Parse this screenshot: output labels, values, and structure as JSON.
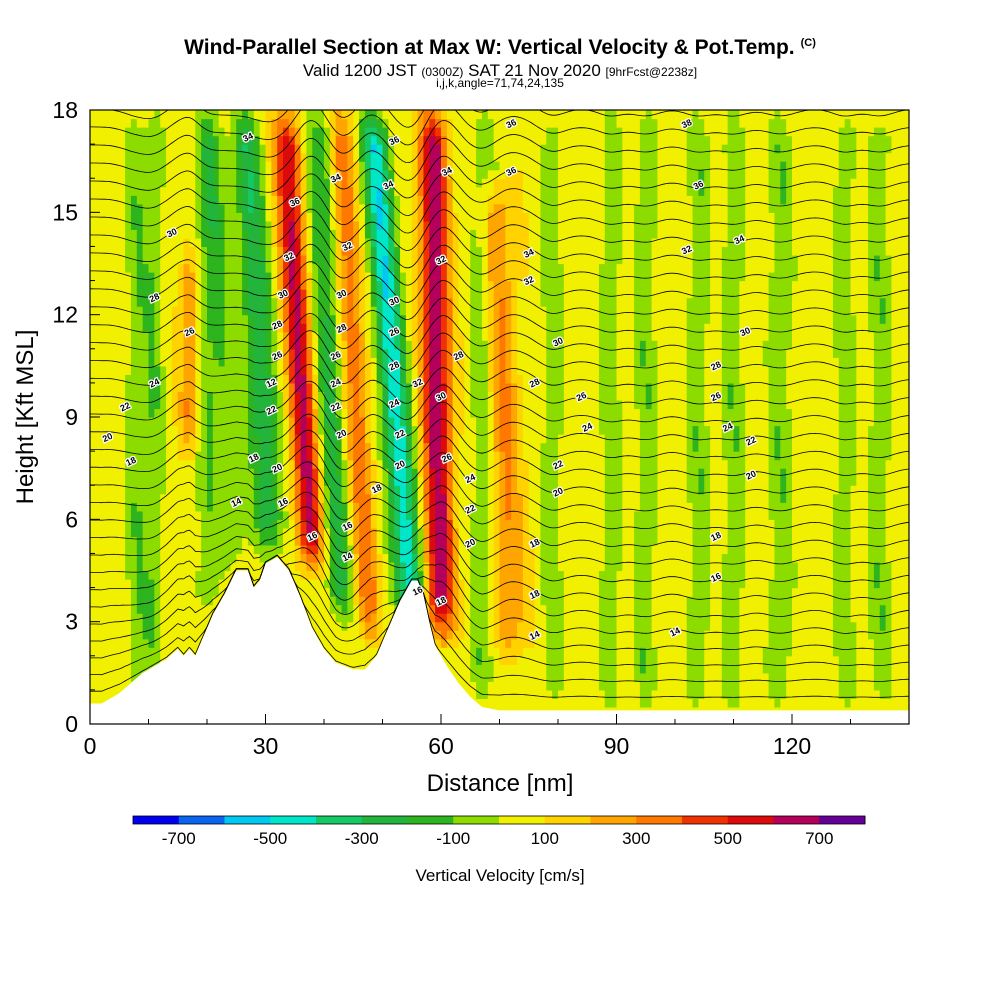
{
  "title": {
    "main": "Wind-Parallel Section at Max W: Vertical Velocity & Pot.Temp.",
    "copyright": "(C)",
    "valid_prefix": "Valid 1200 JST",
    "valid_utc": "(0300Z)",
    "valid_date": "SAT 21 Nov 2020",
    "forecast": "[9hrFcst@2238z]",
    "params": "i,j,k,angle=71,74,24,135"
  },
  "chart_data": {
    "type": "heatmap",
    "xlabel": "Distance [nm]",
    "ylabel": "Height [Kft MSL]",
    "xlim": [
      0,
      140
    ],
    "ylim": [
      0,
      18
    ],
    "xticks": [
      0,
      30,
      60,
      90,
      120
    ],
    "yticks": [
      0,
      3,
      6,
      9,
      12,
      15,
      18
    ],
    "colorbar": {
      "label": "Vertical Velocity [cm/s]",
      "tick_labels": [
        "-700",
        "-500",
        "-300",
        "-100",
        "100",
        "300",
        "500",
        "700"
      ],
      "levels": [
        -800,
        -700,
        -600,
        -500,
        -400,
        -300,
        -200,
        -100,
        0,
        100,
        200,
        300,
        400,
        500,
        600,
        700,
        800
      ],
      "colors": [
        "#0000f0",
        "#0a64f0",
        "#00c8f0",
        "#00e6c8",
        "#14c864",
        "#23b43c",
        "#2db41e",
        "#8cdc00",
        "#f0f000",
        "#ffd200",
        "#ffa500",
        "#ff7800",
        "#f03200",
        "#dc0a0a",
        "#b4005a",
        "#640096"
      ]
    },
    "terrain": [
      [
        0,
        0.6
      ],
      [
        2,
        0.6
      ],
      [
        5,
        0.9
      ],
      [
        9,
        1.5
      ],
      [
        13,
        1.9
      ],
      [
        15,
        2.2
      ],
      [
        16,
        2.0
      ],
      [
        17,
        2.2
      ],
      [
        18,
        2.0
      ],
      [
        19,
        2.4
      ],
      [
        21,
        3.2
      ],
      [
        23,
        3.8
      ],
      [
        25,
        4.5
      ],
      [
        27,
        4.5
      ],
      [
        28,
        4.0
      ],
      [
        29,
        4.2
      ],
      [
        30,
        4.7
      ],
      [
        32,
        4.9
      ],
      [
        34,
        4.5
      ],
      [
        36,
        3.7
      ],
      [
        38,
        2.8
      ],
      [
        40,
        2.2
      ],
      [
        42,
        1.8
      ],
      [
        45,
        1.6
      ],
      [
        47,
        1.6
      ],
      [
        49,
        2.0
      ],
      [
        51,
        2.8
      ],
      [
        53,
        3.6
      ],
      [
        55,
        4.2
      ],
      [
        56,
        4.2
      ],
      [
        57,
        3.8
      ],
      [
        58,
        3.0
      ],
      [
        59,
        2.3
      ],
      [
        61,
        1.7
      ],
      [
        63,
        1.2
      ],
      [
        65,
        0.8
      ],
      [
        67,
        0.5
      ],
      [
        70,
        0.4
      ],
      [
        140,
        0.4
      ]
    ],
    "velocity_bands": [
      {
        "x": 8,
        "hw": 2.0,
        "v": -150,
        "z0": 0.8,
        "z1": 18,
        "slope": 0.0
      },
      {
        "x": 11,
        "hw": 1.6,
        "v": -150,
        "z0": 1.5,
        "z1": 18,
        "slope": 0.0
      },
      {
        "x": 17,
        "hw": 1.6,
        "v": 250,
        "z0": 8,
        "z1": 14,
        "slope": 0.0
      },
      {
        "x": 20,
        "hw": 2.2,
        "v": -150,
        "z0": 3.0,
        "z1": 18,
        "slope": 0.0
      },
      {
        "x": 25,
        "hw": 2.2,
        "v": -150,
        "z0": 4.5,
        "z1": 18,
        "slope": -0.35
      },
      {
        "x": 31,
        "hw": 2.6,
        "v": -350,
        "z0": 5.0,
        "z1": 18,
        "slope": -0.35
      },
      {
        "x": 38,
        "hw": 2.2,
        "v": 550,
        "z0": 4.5,
        "z1": 18,
        "slope": -0.35
      },
      {
        "x": 43,
        "hw": 2.2,
        "v": -300,
        "z0": 3.0,
        "z1": 18,
        "slope": -0.3
      },
      {
        "x": 48,
        "hw": 2.0,
        "v": 300,
        "z0": 2.5,
        "z1": 18,
        "slope": -0.35
      },
      {
        "x": 55,
        "hw": 2.4,
        "v": -550,
        "z0": 3.0,
        "z1": 18,
        "slope": -0.45
      },
      {
        "x": 60,
        "hw": 2.4,
        "v": 600,
        "z0": 2.5,
        "z1": 18,
        "slope": -0.1
      },
      {
        "x": 67,
        "hw": 2.2,
        "v": -150,
        "z0": 0.8,
        "z1": 18,
        "slope": 0.0
      },
      {
        "x": 72,
        "hw": 2.6,
        "v": 250,
        "z0": 2.0,
        "z1": 16,
        "slope": -0.2
      },
      {
        "x": 79,
        "hw": 1.8,
        "v": -150,
        "z0": 0.5,
        "z1": 18,
        "slope": 0.0
      },
      {
        "x": 89,
        "hw": 1.8,
        "v": -150,
        "z0": 0.5,
        "z1": 18,
        "slope": 0.0
      },
      {
        "x": 95,
        "hw": 2.0,
        "v": -150,
        "z0": 0.5,
        "z1": 18,
        "slope": 0.0
      },
      {
        "x": 104,
        "hw": 2.0,
        "v": -150,
        "z0": 0.5,
        "z1": 18,
        "slope": 0.0
      },
      {
        "x": 110,
        "hw": 2.0,
        "v": -150,
        "z0": 0.5,
        "z1": 18,
        "slope": 0.0
      },
      {
        "x": 118,
        "hw": 2.2,
        "v": -150,
        "z0": 0.5,
        "z1": 18,
        "slope": 0.0
      },
      {
        "x": 129,
        "hw": 1.8,
        "v": -150,
        "z0": 0.5,
        "z1": 18,
        "slope": 0.0
      },
      {
        "x": 135,
        "hw": 2.0,
        "v": -150,
        "z0": 0.5,
        "z1": 18,
        "slope": 0.0
      }
    ],
    "theta_contour_labels": [
      {
        "text": "34",
        "x": 27,
        "z": 17.2
      },
      {
        "text": "30",
        "x": 14,
        "z": 14.4
      },
      {
        "text": "28",
        "x": 11,
        "z": 12.5
      },
      {
        "text": "26",
        "x": 17,
        "z": 11.5
      },
      {
        "text": "24",
        "x": 11,
        "z": 10.0
      },
      {
        "text": "22",
        "x": 6,
        "z": 9.3
      },
      {
        "text": "20",
        "x": 3,
        "z": 8.4
      },
      {
        "text": "18",
        "x": 7,
        "z": 7.7
      },
      {
        "text": "14",
        "x": 25,
        "z": 6.5
      },
      {
        "text": "18",
        "x": 28,
        "z": 7.8
      },
      {
        "text": "16",
        "x": 33,
        "z": 6.5
      },
      {
        "text": "36",
        "x": 52,
        "z": 17.1
      },
      {
        "text": "34",
        "x": 42,
        "z": 16.0
      },
      {
        "text": "34",
        "x": 51,
        "z": 15.8
      },
      {
        "text": "36",
        "x": 35,
        "z": 15.3
      },
      {
        "text": "32",
        "x": 44,
        "z": 14.0
      },
      {
        "text": "32",
        "x": 34,
        "z": 13.7
      },
      {
        "text": "30",
        "x": 33,
        "z": 12.6
      },
      {
        "text": "30",
        "x": 43,
        "z": 12.6
      },
      {
        "text": "30",
        "x": 52,
        "z": 12.4
      },
      {
        "text": "28",
        "x": 32,
        "z": 11.7
      },
      {
        "text": "28",
        "x": 43,
        "z": 11.6
      },
      {
        "text": "26",
        "x": 52,
        "z": 11.5
      },
      {
        "text": "26",
        "x": 32,
        "z": 10.8
      },
      {
        "text": "26",
        "x": 42,
        "z": 10.8
      },
      {
        "text": "28",
        "x": 52,
        "z": 10.5
      },
      {
        "text": "12",
        "x": 31,
        "z": 10.0
      },
      {
        "text": "24",
        "x": 42,
        "z": 10.0
      },
      {
        "text": "32",
        "x": 56,
        "z": 10.0
      },
      {
        "text": "22",
        "x": 31,
        "z": 9.2
      },
      {
        "text": "22",
        "x": 42,
        "z": 9.3
      },
      {
        "text": "24",
        "x": 52,
        "z": 9.4
      },
      {
        "text": "20",
        "x": 43,
        "z": 8.5
      },
      {
        "text": "22",
        "x": 53,
        "z": 8.5
      },
      {
        "text": "20",
        "x": 32,
        "z": 7.5
      },
      {
        "text": "20",
        "x": 53,
        "z": 7.6
      },
      {
        "text": "18",
        "x": 49,
        "z": 6.9
      },
      {
        "text": "16",
        "x": 38,
        "z": 5.5
      },
      {
        "text": "16",
        "x": 44,
        "z": 5.8
      },
      {
        "text": "14",
        "x": 44,
        "z": 4.9
      },
      {
        "text": "16",
        "x": 56,
        "z": 3.9
      },
      {
        "text": "18",
        "x": 60,
        "z": 3.6
      },
      {
        "text": "36",
        "x": 72,
        "z": 17.6
      },
      {
        "text": "34",
        "x": 61,
        "z": 16.2
      },
      {
        "text": "36",
        "x": 72,
        "z": 16.2
      },
      {
        "text": "32",
        "x": 60,
        "z": 13.6
      },
      {
        "text": "34",
        "x": 75,
        "z": 13.8
      },
      {
        "text": "32",
        "x": 75,
        "z": 13.0
      },
      {
        "text": "28",
        "x": 63,
        "z": 10.8
      },
      {
        "text": "30",
        "x": 60,
        "z": 9.6
      },
      {
        "text": "26",
        "x": 61,
        "z": 7.8
      },
      {
        "text": "24",
        "x": 65,
        "z": 7.2
      },
      {
        "text": "22",
        "x": 65,
        "z": 6.3
      },
      {
        "text": "20",
        "x": 65,
        "z": 5.3
      },
      {
        "text": "30",
        "x": 80,
        "z": 11.2
      },
      {
        "text": "28",
        "x": 76,
        "z": 10.0
      },
      {
        "text": "26",
        "x": 84,
        "z": 9.6
      },
      {
        "text": "24",
        "x": 85,
        "z": 8.7
      },
      {
        "text": "22",
        "x": 80,
        "z": 7.6
      },
      {
        "text": "20",
        "x": 80,
        "z": 6.8
      },
      {
        "text": "18",
        "x": 76,
        "z": 5.3
      },
      {
        "text": "18",
        "x": 76,
        "z": 3.8
      },
      {
        "text": "14",
        "x": 76,
        "z": 2.6
      },
      {
        "text": "38",
        "x": 102,
        "z": 17.6
      },
      {
        "text": "36",
        "x": 104,
        "z": 15.8
      },
      {
        "text": "34",
        "x": 111,
        "z": 14.2
      },
      {
        "text": "32",
        "x": 102,
        "z": 13.9
      },
      {
        "text": "30",
        "x": 112,
        "z": 11.5
      },
      {
        "text": "28",
        "x": 107,
        "z": 10.5
      },
      {
        "text": "26",
        "x": 107,
        "z": 9.6
      },
      {
        "text": "24",
        "x": 109,
        "z": 8.7
      },
      {
        "text": "22",
        "x": 113,
        "z": 8.3
      },
      {
        "text": "20",
        "x": 113,
        "z": 7.3
      },
      {
        "text": "18",
        "x": 107,
        "z": 5.5
      },
      {
        "text": "16",
        "x": 107,
        "z": 4.3
      },
      {
        "text": "14",
        "x": 100,
        "z": 2.7
      }
    ]
  }
}
